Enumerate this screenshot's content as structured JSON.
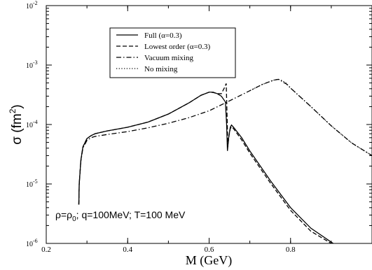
{
  "chart_data": {
    "type": "line",
    "xlabel": "M (GeV)",
    "ylabel": "σ (fm²)",
    "yscale": "log",
    "xlim": [
      0.2,
      1.0
    ],
    "ylim": [
      1e-06,
      0.01
    ],
    "x_ticks": [
      "0.2",
      "0.4",
      "0.6",
      "0.8"
    ],
    "x_tick_values": [
      0.2,
      0.4,
      0.6,
      0.8
    ],
    "y_ticks": [
      {
        "value": 1e-06,
        "base": "10",
        "exp": "-6"
      },
      {
        "value": 1e-05,
        "base": "10",
        "exp": "-5"
      },
      {
        "value": 0.0001,
        "base": "10",
        "exp": "-4"
      },
      {
        "value": 0.001,
        "base": "10",
        "exp": "-3"
      },
      {
        "value": 0.01,
        "base": "10",
        "exp": "-2"
      }
    ],
    "grid": false,
    "legend_position": "top-left",
    "annotation": "ρ=ρ0; q=100MeV; T=100 MeV",
    "series": [
      {
        "name": "Full (α=0.3)",
        "dash": "solid",
        "x": [
          0.28,
          0.281,
          0.285,
          0.29,
          0.3,
          0.31,
          0.32,
          0.35,
          0.4,
          0.45,
          0.5,
          0.55,
          0.58,
          0.6,
          0.61,
          0.62,
          0.63,
          0.64,
          0.643,
          0.645,
          0.648,
          0.652,
          0.655,
          0.66,
          0.68,
          0.7,
          0.75,
          0.8,
          0.85,
          0.9,
          0.905
        ],
        "y": [
          4.5e-06,
          1e-05,
          2.5e-05,
          4.2e-05,
          5.8e-05,
          6.5e-05,
          7e-05,
          7.8e-05,
          9e-05,
          0.00011,
          0.00015,
          0.00023,
          0.00031,
          0.00035,
          0.00035,
          0.00033,
          0.0003,
          0.00024,
          0.0001,
          3.6e-05,
          6e-05,
          9e-05,
          9.8e-05,
          9e-05,
          6e-05,
          3.6e-05,
          1.15e-05,
          4e-06,
          1.8e-06,
          1.05e-06,
          1e-06
        ]
      },
      {
        "name": "Lowest order (α=0.3)",
        "dash": "dashed",
        "x": [
          0.28,
          0.281,
          0.285,
          0.29,
          0.3,
          0.31,
          0.32,
          0.35,
          0.4,
          0.45,
          0.5,
          0.55,
          0.58,
          0.6,
          0.61,
          0.62,
          0.63,
          0.638,
          0.642,
          0.644,
          0.646,
          0.648,
          0.652,
          0.655,
          0.66,
          0.68,
          0.7,
          0.75,
          0.8,
          0.85,
          0.9
        ],
        "y": [
          4.5e-06,
          1e-05,
          2.5e-05,
          4.2e-05,
          5.8e-05,
          6.5e-05,
          7e-05,
          7.8e-05,
          9e-05,
          0.00011,
          0.00015,
          0.00023,
          0.00031,
          0.00035,
          0.000345,
          0.00033,
          0.00033,
          0.00042,
          0.00049,
          0.00015,
          4.2e-05,
          6e-05,
          8.5e-05,
          9.2e-05,
          8.5e-05,
          5.5e-05,
          3.3e-05,
          1.05e-05,
          3.6e-06,
          1.6e-06,
          1e-06
        ]
      },
      {
        "name": "Vacuum mixing",
        "dash": "dashdot",
        "x": [
          0.28,
          0.281,
          0.285,
          0.29,
          0.3,
          0.31,
          0.32,
          0.35,
          0.4,
          0.45,
          0.5,
          0.55,
          0.6,
          0.65,
          0.7,
          0.73,
          0.75,
          0.76,
          0.77,
          0.775,
          0.78,
          0.785,
          0.79,
          0.8,
          0.85,
          0.9,
          0.95,
          1.0
        ],
        "y": [
          4.5e-06,
          1e-05,
          2.4e-05,
          4e-05,
          5.4e-05,
          6e-05,
          6.3e-05,
          6.8e-05,
          7.6e-05,
          8.8e-05,
          0.000105,
          0.00013,
          0.00017,
          0.00025,
          0.00037,
          0.00047,
          0.00053,
          0.00056,
          0.000575,
          0.00056,
          0.00052,
          0.0005,
          0.00048,
          0.00041,
          0.0002,
          9.5e-05,
          4.9e-05,
          3e-05
        ]
      },
      {
        "name": "No mixing",
        "dash": "dotted",
        "x": [
          0.7,
          0.73,
          0.75,
          0.76,
          0.77,
          0.775,
          0.78,
          0.785,
          0.79,
          0.8,
          0.85,
          0.9,
          0.95,
          1.0
        ],
        "y": [
          0.00037,
          0.00047,
          0.00053,
          0.00056,
          0.000575,
          0.000565,
          0.00054,
          0.00052,
          0.00049,
          0.00041,
          0.0002,
          9.5e-05,
          4.9e-05,
          3e-05
        ]
      }
    ]
  }
}
